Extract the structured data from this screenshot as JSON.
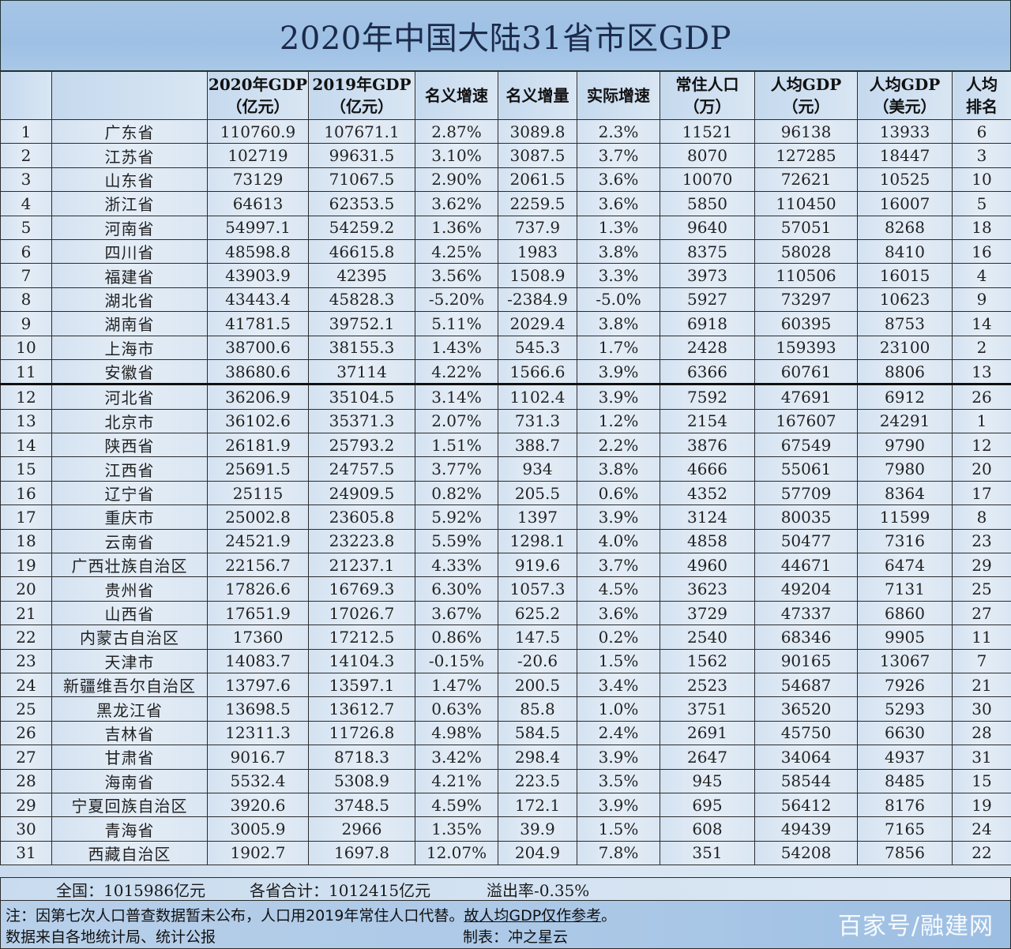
{
  "title": "2020年中国大陆31省市区GDP",
  "headers": [
    {
      "line1": "",
      "line2": ""
    },
    {
      "line1": "",
      "line2": ""
    },
    {
      "line1": "2020年GDP",
      "line2": "（亿元）"
    },
    {
      "line1": "2019年GDP",
      "line2": "（亿元）"
    },
    {
      "line1": "名义增速",
      "line2": ""
    },
    {
      "line1": "名义增量",
      "line2": ""
    },
    {
      "line1": "实际增速",
      "line2": ""
    },
    {
      "line1": "常住人口",
      "line2": "（万）"
    },
    {
      "line1": "人均GDP",
      "line2": "（元）"
    },
    {
      "line1": "人均GDP",
      "line2": "（美元）"
    },
    {
      "line1": "人均",
      "line2": "排名"
    }
  ],
  "rows": [
    [
      "1",
      "广东省",
      "110760.9",
      "107671.1",
      "2.87%",
      "3089.8",
      "2.3%",
      "11521",
      "96138",
      "13933",
      "6"
    ],
    [
      "2",
      "江苏省",
      "102719",
      "99631.5",
      "3.10%",
      "3087.5",
      "3.7%",
      "8070",
      "127285",
      "18447",
      "3"
    ],
    [
      "3",
      "山东省",
      "73129",
      "71067.5",
      "2.90%",
      "2061.5",
      "3.6%",
      "10070",
      "72621",
      "10525",
      "10"
    ],
    [
      "4",
      "浙江省",
      "64613",
      "62353.5",
      "3.62%",
      "2259.5",
      "3.6%",
      "5850",
      "110450",
      "16007",
      "5"
    ],
    [
      "5",
      "河南省",
      "54997.1",
      "54259.2",
      "1.36%",
      "737.9",
      "1.3%",
      "9640",
      "57051",
      "8268",
      "18"
    ],
    [
      "6",
      "四川省",
      "48598.8",
      "46615.8",
      "4.25%",
      "1983",
      "3.8%",
      "8375",
      "58028",
      "8410",
      "16"
    ],
    [
      "7",
      "福建省",
      "43903.9",
      "42395",
      "3.56%",
      "1508.9",
      "3.3%",
      "3973",
      "110506",
      "16015",
      "4"
    ],
    [
      "8",
      "湖北省",
      "43443.4",
      "45828.3",
      "-5.20%",
      "-2384.9",
      "-5.0%",
      "5927",
      "73297",
      "10623",
      "9"
    ],
    [
      "9",
      "湖南省",
      "41781.5",
      "39752.1",
      "5.11%",
      "2029.4",
      "3.8%",
      "6918",
      "60395",
      "8753",
      "14"
    ],
    [
      "10",
      "上海市",
      "38700.6",
      "38155.3",
      "1.43%",
      "545.3",
      "1.7%",
      "2428",
      "159393",
      "23100",
      "2"
    ],
    [
      "11",
      "安徽省",
      "38680.6",
      "37114",
      "4.22%",
      "1566.6",
      "3.9%",
      "6366",
      "60761",
      "8806",
      "13"
    ],
    [
      "12",
      "河北省",
      "36206.9",
      "35104.5",
      "3.14%",
      "1102.4",
      "3.9%",
      "7592",
      "47691",
      "6912",
      "26"
    ],
    [
      "13",
      "北京市",
      "36102.6",
      "35371.3",
      "2.07%",
      "731.3",
      "1.2%",
      "2154",
      "167607",
      "24291",
      "1"
    ],
    [
      "14",
      "陕西省",
      "26181.9",
      "25793.2",
      "1.51%",
      "388.7",
      "2.2%",
      "3876",
      "67549",
      "9790",
      "12"
    ],
    [
      "15",
      "江西省",
      "25691.5",
      "24757.5",
      "3.77%",
      "934",
      "3.8%",
      "4666",
      "55061",
      "7980",
      "20"
    ],
    [
      "16",
      "辽宁省",
      "25115",
      "24909.5",
      "0.82%",
      "205.5",
      "0.6%",
      "4352",
      "57709",
      "8364",
      "17"
    ],
    [
      "17",
      "重庆市",
      "25002.8",
      "23605.8",
      "5.92%",
      "1397",
      "3.9%",
      "3124",
      "80035",
      "11599",
      "8"
    ],
    [
      "18",
      "云南省",
      "24521.9",
      "23223.8",
      "5.59%",
      "1298.1",
      "4.0%",
      "4858",
      "50477",
      "7316",
      "23"
    ],
    [
      "19",
      "广西壮族自治区",
      "22156.7",
      "21237.1",
      "4.33%",
      "919.6",
      "3.7%",
      "4960",
      "44671",
      "6474",
      "29"
    ],
    [
      "20",
      "贵州省",
      "17826.6",
      "16769.3",
      "6.30%",
      "1057.3",
      "4.5%",
      "3623",
      "49204",
      "7131",
      "25"
    ],
    [
      "21",
      "山西省",
      "17651.9",
      "17026.7",
      "3.67%",
      "625.2",
      "3.6%",
      "3729",
      "47337",
      "6860",
      "27"
    ],
    [
      "22",
      "内蒙古自治区",
      "17360",
      "17212.5",
      "0.86%",
      "147.5",
      "0.2%",
      "2540",
      "68346",
      "9905",
      "11"
    ],
    [
      "23",
      "天津市",
      "14083.7",
      "14104.3",
      "-0.15%",
      "-20.6",
      "1.5%",
      "1562",
      "90165",
      "13067",
      "7"
    ],
    [
      "24",
      "新疆维吾尔自治区",
      "13797.6",
      "13597.1",
      "1.47%",
      "200.5",
      "3.4%",
      "2523",
      "54687",
      "7926",
      "21"
    ],
    [
      "25",
      "黑龙江省",
      "13698.5",
      "13612.7",
      "0.63%",
      "85.8",
      "1.0%",
      "3751",
      "36520",
      "5293",
      "30"
    ],
    [
      "26",
      "吉林省",
      "12311.3",
      "11726.8",
      "4.98%",
      "584.5",
      "2.4%",
      "2691",
      "45750",
      "6630",
      "28"
    ],
    [
      "27",
      "甘肃省",
      "9016.7",
      "8718.3",
      "3.42%",
      "298.4",
      "3.9%",
      "2647",
      "34064",
      "4937",
      "31"
    ],
    [
      "28",
      "海南省",
      "5532.4",
      "5308.9",
      "4.21%",
      "223.5",
      "3.5%",
      "945",
      "58544",
      "8485",
      "15"
    ],
    [
      "29",
      "宁夏回族自治区",
      "3920.6",
      "3748.5",
      "4.59%",
      "172.1",
      "3.9%",
      "695",
      "56412",
      "8176",
      "19"
    ],
    [
      "30",
      "青海省",
      "3005.9",
      "2966",
      "1.35%",
      "39.9",
      "1.5%",
      "608",
      "49439",
      "7165",
      "24"
    ],
    [
      "31",
      "西藏自治区",
      "1902.7",
      "1697.8",
      "12.07%",
      "204.9",
      "7.8%",
      "351",
      "54208",
      "7856",
      "22"
    ]
  ],
  "totals": {
    "national": "全国：1015986亿元",
    "provinces_sum": "各省合计：1012415亿元",
    "overflow_rate": "溢出率-0.35%"
  },
  "notes": {
    "note_prefix": "注：因第七次人口普查数据暂未公布，人口用2019年常住人口代替。",
    "note_underlined": "故人均GDP仅作参考",
    "note_suffix": "。",
    "source": "数据来自各地统计局、统计公报",
    "made_by": "制表：冲之星云"
  },
  "watermark": "百家号/融建网",
  "colors": {
    "title_bg": "#9dc0e4",
    "cell_bg": "#dbe7f3",
    "border": "#2b2b2b",
    "title_text": "#1c2a4a"
  }
}
